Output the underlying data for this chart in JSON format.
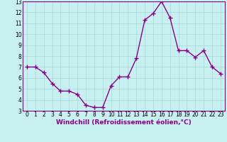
{
  "x": [
    0,
    1,
    2,
    3,
    4,
    5,
    6,
    7,
    8,
    9,
    10,
    11,
    12,
    13,
    14,
    15,
    16,
    17,
    18,
    19,
    20,
    21,
    22,
    23
  ],
  "y": [
    7.0,
    7.0,
    6.5,
    5.5,
    4.8,
    4.8,
    4.5,
    3.5,
    3.3,
    3.3,
    5.3,
    6.1,
    6.1,
    7.8,
    11.3,
    11.9,
    13.0,
    11.5,
    8.5,
    8.5,
    7.9,
    8.5,
    7.0,
    6.4
  ],
  "line_color": "#880088",
  "marker_color": "#880088",
  "bg_color": "#c8f0f0",
  "grid_color": "#a8d8d8",
  "xlabel": "Windchill (Refroidissement éolien,°C)",
  "xlim": [
    -0.5,
    23.5
  ],
  "ylim": [
    3,
    13
  ],
  "yticks": [
    3,
    4,
    5,
    6,
    7,
    8,
    9,
    10,
    11,
    12,
    13
  ],
  "xticks": [
    0,
    1,
    2,
    3,
    4,
    5,
    6,
    7,
    8,
    9,
    10,
    11,
    12,
    13,
    14,
    15,
    16,
    17,
    18,
    19,
    20,
    21,
    22,
    23
  ],
  "xtick_labels": [
    "0",
    "1",
    "2",
    "3",
    "4",
    "5",
    "6",
    "7",
    "8",
    "9",
    "10",
    "11",
    "12",
    "13",
    "14",
    "15",
    "16",
    "17",
    "18",
    "19",
    "20",
    "21",
    "22",
    "23"
  ],
  "label_fontsize": 6.5,
  "tick_fontsize": 5.5,
  "line_width": 1.0,
  "marker_size": 2.5
}
